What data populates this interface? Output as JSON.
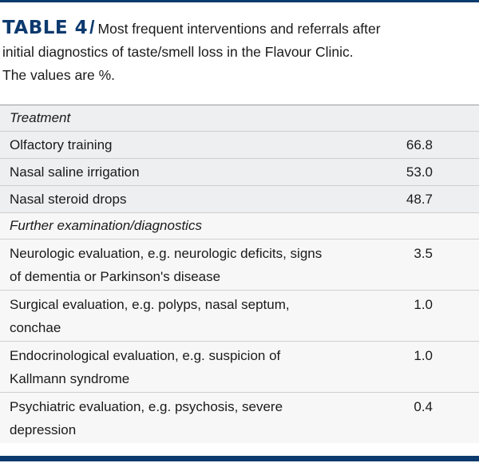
{
  "caption": {
    "label": "TABLE 4",
    "slash": "/",
    "line1": "Most frequent interventions and referrals after",
    "line2": "initial diagnostics of taste/smell loss in the Flavour Clinic.",
    "line3": "The values are %."
  },
  "sections": [
    {
      "heading": "Treatment",
      "rows": [
        {
          "name": "Olfactory training",
          "value": "66.8"
        },
        {
          "name": "Nasal saline irrigation",
          "value": "53.0"
        },
        {
          "name": "Nasal steroid drops",
          "value": "48.7"
        }
      ]
    },
    {
      "heading": "Further examination/diagnostics",
      "rows": [
        {
          "name_l1": "Neurologic evaluation, e.g. neurologic deficits, signs",
          "name_l2": "of dementia or Parkinson's disease",
          "value": "3.5"
        },
        {
          "name_l1": "Surgical evaluation, e.g. polyps, nasal septum,",
          "name_l2": "conchae",
          "value": "1.0"
        },
        {
          "name_l1": "Endocrinological evaluation, e.g. suspicion of",
          "name_l2": "Kallmann syndrome",
          "value": "1.0"
        },
        {
          "name_l1": "Psychiatric evaluation, e.g. psychosis, severe",
          "name_l2": "depression",
          "value": "0.4"
        }
      ]
    }
  ],
  "colors": {
    "accent": "#0d3a6e",
    "shade_treatment": "#eeeff0",
    "shade_diagnostics": "#f7f7f7"
  }
}
